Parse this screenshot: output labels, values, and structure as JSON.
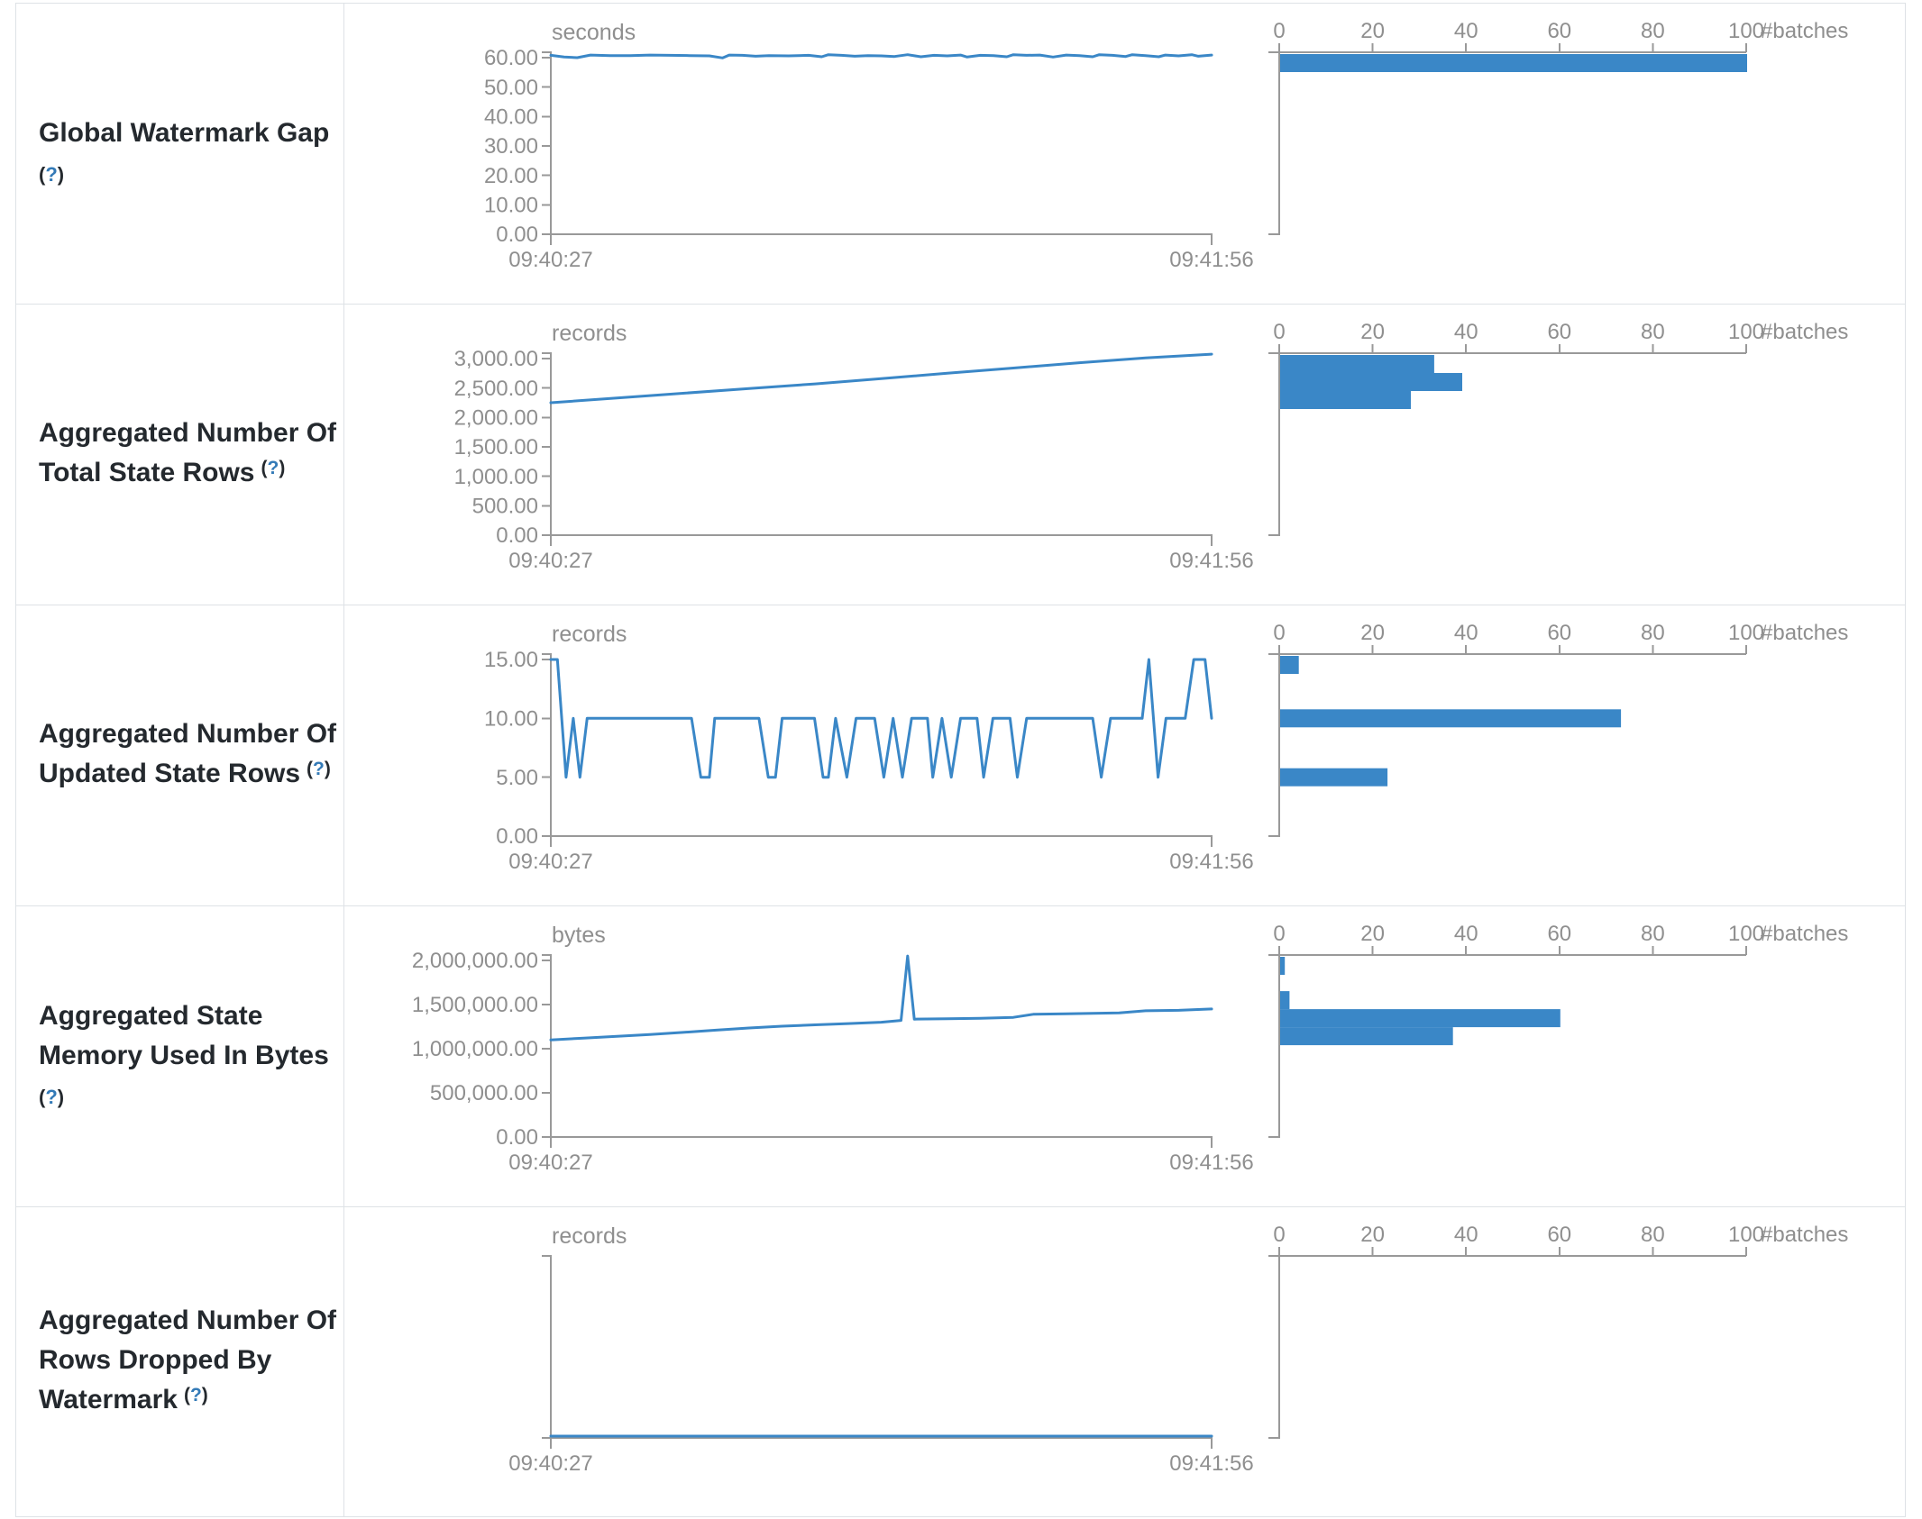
{
  "palette": {
    "accent_blue": "#3a87c7",
    "axis_line": "#999999",
    "axis_text": "#8f8f8f",
    "label_text": "#24292e",
    "hint_blue": "#337ab7",
    "table_border": "#dee2e6"
  },
  "timeline_axis": {
    "start_label": "09:40:27",
    "end_label": "09:41:56"
  },
  "histogram_axis": {
    "tick_labels": [
      "0",
      "20",
      "40",
      "60",
      "80",
      "100"
    ],
    "tick_values": [
      0,
      20,
      40,
      60,
      80,
      100
    ],
    "unit_label": "#batches",
    "max": 100
  },
  "chart_data": [
    {
      "id": "global-watermark-gap",
      "title": "Global Watermark Gap",
      "label_lines": [
        "Global Watermark Gap"
      ],
      "hint": "(?)",
      "hint_own_line": true,
      "unit": "seconds",
      "y_tick_labels": [
        "60.00",
        "50.00",
        "40.00",
        "30.00",
        "20.00",
        "10.00",
        "0.00"
      ],
      "y_max": 60,
      "x_range": [
        "09:40:27",
        "09:41:56"
      ],
      "timeline": {
        "type": "line",
        "points": [
          [
            0,
            60.8
          ],
          [
            2,
            60.2
          ],
          [
            4,
            60.0
          ],
          [
            6,
            60.9
          ],
          [
            9,
            60.7
          ],
          [
            12,
            60.7
          ],
          [
            15,
            60.9
          ],
          [
            18,
            60.8
          ],
          [
            21,
            60.7
          ],
          [
            24,
            60.6
          ],
          [
            26,
            59.9
          ],
          [
            27,
            60.9
          ],
          [
            29,
            60.8
          ],
          [
            31,
            60.5
          ],
          [
            33,
            60.7
          ],
          [
            36,
            60.6
          ],
          [
            39,
            60.8
          ],
          [
            41,
            60.3
          ],
          [
            42,
            61.0
          ],
          [
            44,
            60.8
          ],
          [
            46,
            60.5
          ],
          [
            48,
            60.7
          ],
          [
            50,
            60.6
          ],
          [
            52,
            60.4
          ],
          [
            54,
            61.0
          ],
          [
            56,
            60.3
          ],
          [
            58,
            60.8
          ],
          [
            60,
            60.6
          ],
          [
            62,
            60.9
          ],
          [
            63,
            60.2
          ],
          [
            65,
            60.8
          ],
          [
            67,
            60.7
          ],
          [
            69,
            60.3
          ],
          [
            70,
            61.0
          ],
          [
            72,
            60.8
          ],
          [
            74,
            60.9
          ],
          [
            76,
            60.2
          ],
          [
            78,
            60.9
          ],
          [
            80,
            60.7
          ],
          [
            82,
            60.3
          ],
          [
            83,
            61.0
          ],
          [
            85,
            60.8
          ],
          [
            87,
            60.4
          ],
          [
            88,
            61.0
          ],
          [
            90,
            60.7
          ],
          [
            92,
            60.3
          ],
          [
            93,
            60.9
          ],
          [
            95,
            60.6
          ],
          [
            97,
            61.0
          ],
          [
            98,
            60.5
          ],
          [
            100,
            60.9
          ]
        ]
      },
      "histogram": {
        "type": "bar",
        "bins": [
          {
            "center": 60,
            "count": 100
          }
        ]
      }
    },
    {
      "id": "aggregated-total-state-rows",
      "title": "Aggregated Number Of Total State Rows",
      "label_lines": [
        "Aggregated Number Of",
        "Total State Rows"
      ],
      "hint": "(?)",
      "hint_own_line": false,
      "unit": "records",
      "y_tick_labels": [
        "3,000.00",
        "2,500.00",
        "2,000.00",
        "1,500.00",
        "1,000.00",
        "500.00",
        "0.00"
      ],
      "y_max": 3000,
      "x_range": [
        "09:40:27",
        "09:41:56"
      ],
      "timeline": {
        "type": "line",
        "points": [
          [
            0,
            2250
          ],
          [
            10,
            2330
          ],
          [
            20,
            2410
          ],
          [
            30,
            2490
          ],
          [
            40,
            2570
          ],
          [
            50,
            2660
          ],
          [
            55,
            2705
          ],
          [
            60,
            2750
          ],
          [
            70,
            2840
          ],
          [
            80,
            2930
          ],
          [
            90,
            3010
          ],
          [
            100,
            3075
          ]
        ]
      },
      "histogram": {
        "type": "bar",
        "bins": [
          {
            "center": 2940,
            "count": 33
          },
          {
            "center": 2650,
            "count": 39
          },
          {
            "center": 2360,
            "count": 28
          }
        ]
      }
    },
    {
      "id": "aggregated-updated-state-rows",
      "title": "Aggregated Number Of Updated State Rows",
      "label_lines": [
        "Aggregated Number Of",
        "Updated State Rows"
      ],
      "hint": "(?)",
      "hint_own_line": false,
      "unit": "records",
      "y_tick_labels": [
        "15.00",
        "10.00",
        "5.00",
        "0.00"
      ],
      "y_max": 15,
      "x_range": [
        "09:40:27",
        "09:41:56"
      ],
      "timeline": {
        "type": "line",
        "points": [
          [
            0,
            15
          ],
          [
            1,
            15
          ],
          [
            2.3,
            5
          ],
          [
            3.4,
            10
          ],
          [
            4.4,
            5
          ],
          [
            5.5,
            10
          ],
          [
            21.3,
            10
          ],
          [
            22.7,
            5
          ],
          [
            24,
            5
          ],
          [
            24.8,
            10
          ],
          [
            31.5,
            10
          ],
          [
            32.9,
            5
          ],
          [
            34,
            5
          ],
          [
            35,
            10
          ],
          [
            39.9,
            10
          ],
          [
            41.2,
            5
          ],
          [
            42,
            5
          ],
          [
            43.1,
            10
          ],
          [
            44.8,
            5
          ],
          [
            46.2,
            10
          ],
          [
            49,
            10
          ],
          [
            50.4,
            5
          ],
          [
            51.8,
            10
          ],
          [
            53.2,
            5
          ],
          [
            54.6,
            10
          ],
          [
            57,
            10
          ],
          [
            57.8,
            5
          ],
          [
            59.2,
            10
          ],
          [
            60.6,
            5
          ],
          [
            62,
            10
          ],
          [
            64.5,
            10
          ],
          [
            65.5,
            5
          ],
          [
            66.9,
            10
          ],
          [
            69.5,
            10
          ],
          [
            70.6,
            5
          ],
          [
            72,
            10
          ],
          [
            82,
            10
          ],
          [
            83.3,
            5
          ],
          [
            84.7,
            10
          ],
          [
            89.5,
            10
          ],
          [
            90.5,
            15
          ],
          [
            91.9,
            5
          ],
          [
            93.1,
            10
          ],
          [
            96,
            10
          ],
          [
            97.3,
            15
          ],
          [
            99,
            15
          ],
          [
            100,
            10
          ]
        ]
      },
      "histogram": {
        "type": "bar",
        "bins": [
          {
            "center": 15,
            "count": 4
          },
          {
            "center": 10,
            "count": 73
          },
          {
            "center": 5,
            "count": 23
          }
        ]
      }
    },
    {
      "id": "aggregated-state-memory-used",
      "title": "Aggregated State Memory Used In Bytes",
      "label_lines": [
        "Aggregated State",
        "Memory Used In Bytes"
      ],
      "hint": "(?)",
      "hint_own_line": true,
      "unit": "bytes",
      "y_tick_labels": [
        "2,000,000.00",
        "1,500,000.00",
        "1,000,000.00",
        "500,000.00",
        "0.00"
      ],
      "y_max": 2000000,
      "x_range": [
        "09:40:27",
        "09:41:56"
      ],
      "timeline": {
        "type": "line",
        "points": [
          [
            0,
            1100000
          ],
          [
            5,
            1120000
          ],
          [
            10,
            1140000
          ],
          [
            15,
            1160000
          ],
          [
            20,
            1185000
          ],
          [
            25,
            1210000
          ],
          [
            30,
            1235000
          ],
          [
            35,
            1255000
          ],
          [
            40,
            1270000
          ],
          [
            45,
            1285000
          ],
          [
            50,
            1300000
          ],
          [
            53,
            1320000
          ],
          [
            54,
            2050000
          ],
          [
            55,
            1335000
          ],
          [
            60,
            1340000
          ],
          [
            65,
            1345000
          ],
          [
            70,
            1355000
          ],
          [
            73,
            1390000
          ],
          [
            78,
            1395000
          ],
          [
            82,
            1400000
          ],
          [
            86,
            1405000
          ],
          [
            90,
            1430000
          ],
          [
            95,
            1435000
          ],
          [
            100,
            1450000
          ]
        ]
      },
      "histogram": {
        "type": "bar",
        "bins": [
          {
            "center": 2050000,
            "count": 1
          },
          {
            "center": 1550000,
            "count": 2
          },
          {
            "center": 1350000,
            "count": 60
          },
          {
            "center": 1150000,
            "count": 37
          }
        ]
      }
    },
    {
      "id": "aggregated-rows-dropped-by-watermark",
      "title": "Aggregated Number Of Rows Dropped By Watermark",
      "label_lines": [
        "Aggregated Number Of",
        "Rows Dropped By",
        "Watermark"
      ],
      "hint": "(?)",
      "hint_own_line": false,
      "unit": "records",
      "y_tick_labels": [],
      "y_max": null,
      "x_range": [
        "09:40:27",
        "09:41:56"
      ],
      "timeline": {
        "type": "line",
        "points": [
          [
            0,
            0
          ],
          [
            100,
            0
          ]
        ]
      },
      "histogram": {
        "type": "bar",
        "bins": []
      }
    }
  ]
}
